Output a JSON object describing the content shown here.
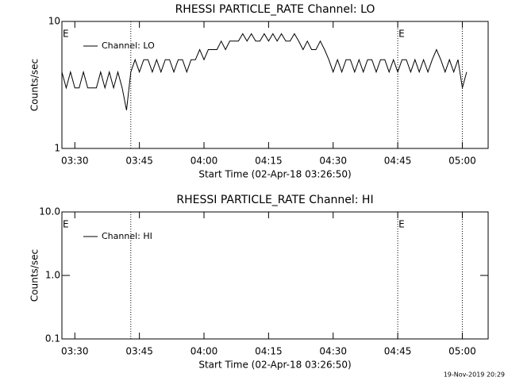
{
  "chart_data": [
    {
      "type": "line",
      "title": "RHESSI PARTICLE_RATE Channel: LO",
      "xlabel": "Start Time (02-Apr-18 03:26:50)",
      "ylabel": "Counts/sec",
      "x": [
        "03:27",
        "03:28",
        "03:29",
        "03:30",
        "03:31",
        "03:32",
        "03:33",
        "03:34",
        "03:35",
        "03:36",
        "03:37",
        "03:38",
        "03:39",
        "03:40",
        "03:41",
        "03:42",
        "03:43",
        "03:44",
        "03:45",
        "03:46",
        "03:47",
        "03:48",
        "03:49",
        "03:50",
        "03:51",
        "03:52",
        "03:53",
        "03:54",
        "03:55",
        "03:56",
        "03:57",
        "03:58",
        "03:59",
        "04:00",
        "04:01",
        "04:02",
        "04:03",
        "04:04",
        "04:05",
        "04:06",
        "04:07",
        "04:08",
        "04:09",
        "04:10",
        "04:11",
        "04:12",
        "04:13",
        "04:14",
        "04:15",
        "04:16",
        "04:17",
        "04:18",
        "04:19",
        "04:20",
        "04:21",
        "04:22",
        "04:23",
        "04:24",
        "04:25",
        "04:26",
        "04:27",
        "04:28",
        "04:29",
        "04:30",
        "04:31",
        "04:32",
        "04:33",
        "04:34",
        "04:35",
        "04:36",
        "04:37",
        "04:38",
        "04:39",
        "04:40",
        "04:41",
        "04:42",
        "04:43",
        "04:44",
        "04:45",
        "04:46",
        "04:47",
        "04:48",
        "04:49",
        "04:50",
        "04:51",
        "04:52",
        "04:53",
        "04:54",
        "04:55",
        "04:56",
        "04:57",
        "04:58",
        "04:59",
        "05:00",
        "05:01"
      ],
      "series": [
        {
          "name": "Channel: LO",
          "color": "#000000",
          "values": [
            4,
            3,
            4,
            3,
            3,
            4,
            3,
            3,
            3,
            4,
            3,
            4,
            3,
            4,
            3,
            2,
            4,
            5,
            4,
            5,
            5,
            4,
            5,
            4,
            5,
            5,
            4,
            5,
            5,
            4,
            5,
            5,
            6,
            5,
            6,
            6,
            6,
            7,
            6,
            7,
            7,
            7,
            8,
            7,
            8,
            7,
            7,
            8,
            7,
            8,
            7,
            8,
            7,
            7,
            8,
            7,
            6,
            7,
            6,
            6,
            7,
            6,
            5,
            4,
            5,
            4,
            5,
            5,
            4,
            5,
            4,
            5,
            5,
            4,
            5,
            5,
            4,
            5,
            4,
            5,
            5,
            4,
            5,
            4,
            5,
            4,
            5,
            6,
            5,
            4,
            5,
            4,
            5,
            3,
            4
          ]
        }
      ],
      "xlim": [
        "03:27",
        "05:06"
      ],
      "xticks": [
        "03:30",
        "03:45",
        "04:00",
        "04:15",
        "04:30",
        "04:45",
        "05:00"
      ],
      "ylim": [
        1,
        10
      ],
      "yticks": [
        1,
        10
      ],
      "log_y": true,
      "vlines": [
        "03:43",
        "04:45",
        "05:00"
      ],
      "annotations": [
        {
          "text": "E",
          "x": "03:27"
        },
        {
          "text": "E",
          "x": "04:45"
        }
      ]
    },
    {
      "type": "line",
      "title": "RHESSI PARTICLE_RATE Channel: HI",
      "xlabel": "Start Time (02-Apr-18 03:26:50)",
      "ylabel": "Counts/sec",
      "x": [],
      "series": [
        {
          "name": "Channel: HI",
          "color": "#000000",
          "values": []
        }
      ],
      "xlim": [
        "03:27",
        "05:06"
      ],
      "xticks": [
        "03:30",
        "03:45",
        "04:00",
        "04:15",
        "04:30",
        "04:45",
        "05:00"
      ],
      "ylim": [
        0.1,
        10
      ],
      "yticks": [
        0.1,
        {
          "value": 1,
          "label": "1.0"
        },
        {
          "value": 10,
          "label": "10.0"
        }
      ],
      "log_y": true,
      "vlines": [
        "03:43",
        "04:45",
        "05:00"
      ],
      "annotations": [
        {
          "text": "E",
          "x": "03:27"
        },
        {
          "text": "E",
          "x": "04:45"
        }
      ]
    }
  ],
  "footer": "19-Nov-2019 20:29"
}
